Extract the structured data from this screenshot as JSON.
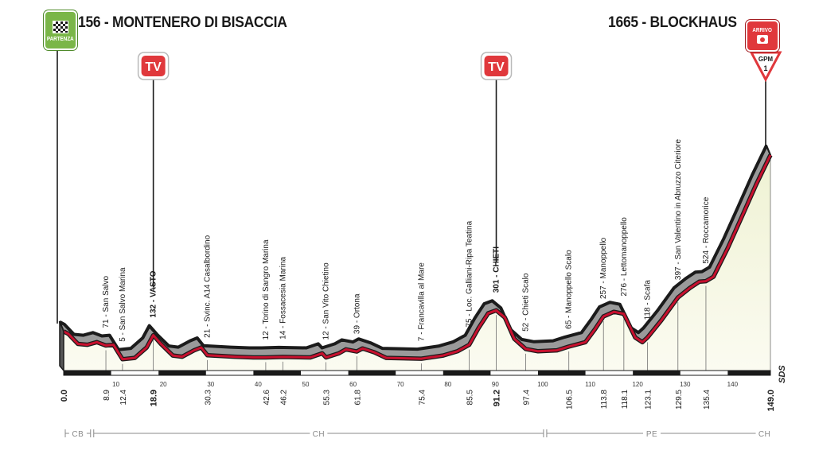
{
  "chart_data": {
    "type": "area",
    "start": {
      "name": "MONTENERO DI BISACCIA",
      "elevation": "156",
      "label": "156 - MONTENERO DI BISACCIA"
    },
    "finish": {
      "name": "BLOCKHAUS",
      "elevation": "1665",
      "label": "1665 - BLOCKHAUS"
    },
    "start_badge": "PARTENZA",
    "finish_badge": "ARRIVO",
    "tv_label": "TV",
    "tv_km": [
      18.9,
      91.2
    ],
    "gpm": {
      "label": "GPM",
      "category": "1",
      "km": 149.0
    },
    "xlim": [
      0,
      149
    ],
    "elevation_range": [
      0,
      1665
    ],
    "profile": [
      [
        0,
        156
      ],
      [
        1,
        140
      ],
      [
        3,
        80
      ],
      [
        5,
        75
      ],
      [
        7,
        90
      ],
      [
        8.9,
        71
      ],
      [
        10.5,
        75
      ],
      [
        12.4,
        5
      ],
      [
        15,
        10
      ],
      [
        17.5,
        60
      ],
      [
        18.9,
        132
      ],
      [
        20.5,
        80
      ],
      [
        23,
        20
      ],
      [
        25,
        15
      ],
      [
        27.5,
        45
      ],
      [
        29,
        60
      ],
      [
        30.3,
        21
      ],
      [
        36,
        15
      ],
      [
        40,
        12
      ],
      [
        42.6,
        12
      ],
      [
        46.2,
        14
      ],
      [
        52,
        12
      ],
      [
        54.5,
        30
      ],
      [
        55.3,
        12
      ],
      [
        58,
        30
      ],
      [
        59.5,
        50
      ],
      [
        61.8,
        39
      ],
      [
        63,
        55
      ],
      [
        65.5,
        35
      ],
      [
        68,
        10
      ],
      [
        75.4,
        7
      ],
      [
        80,
        20
      ],
      [
        83,
        40
      ],
      [
        85.5,
        75
      ],
      [
        87.5,
        180
      ],
      [
        89.5,
        280
      ],
      [
        91.2,
        301
      ],
      [
        93,
        250
      ],
      [
        95,
        110
      ],
      [
        97.4,
        52
      ],
      [
        100,
        40
      ],
      [
        104,
        45
      ],
      [
        106.5,
        65
      ],
      [
        110,
        90
      ],
      [
        112,
        170
      ],
      [
        113.8,
        257
      ],
      [
        116,
        290
      ],
      [
        118.1,
        276
      ],
      [
        120.5,
        118
      ],
      [
        122,
        90
      ],
      [
        123.1,
        118
      ],
      [
        126,
        230
      ],
      [
        129.5,
        397
      ],
      [
        132,
        470
      ],
      [
        134,
        520
      ],
      [
        135.4,
        524
      ],
      [
        137,
        560
      ],
      [
        140,
        800
      ],
      [
        143,
        1080
      ],
      [
        146,
        1380
      ],
      [
        149,
        1665
      ]
    ],
    "km_ticks": [
      "10",
      "20",
      "30",
      "40",
      "50",
      "60",
      "70",
      "80",
      "90",
      "100",
      "110",
      "120",
      "130",
      "140"
    ],
    "markers": [
      {
        "km": 0.0,
        "text": "",
        "km_label": "0.0",
        "bold": true
      },
      {
        "km": 8.9,
        "text": "71 - San Salvo",
        "km_label": "8.9",
        "bold": false
      },
      {
        "km": 12.4,
        "text": "5 - San Salvo Marina",
        "km_label": "12.4",
        "bold": false
      },
      {
        "km": 18.9,
        "text": "132 - VASTO",
        "km_label": "18.9",
        "bold": true
      },
      {
        "km": 30.3,
        "text": "21 - Svinc. A14 Casalbordino",
        "km_label": "30.3",
        "bold": false
      },
      {
        "km": 42.6,
        "text": "12 - Torino di Sangro Marina",
        "km_label": "42.6",
        "bold": false
      },
      {
        "km": 46.2,
        "text": "14 - Fossacesia Marina",
        "km_label": "46.2",
        "bold": false
      },
      {
        "km": 55.3,
        "text": "12 - San Vito Chietino",
        "km_label": "55.3",
        "bold": false
      },
      {
        "km": 61.8,
        "text": "39 - Ortona",
        "km_label": "61.8",
        "bold": false
      },
      {
        "km": 75.4,
        "text": "7 - Francavilla al Mare",
        "km_label": "75.4",
        "bold": false
      },
      {
        "km": 85.5,
        "text": "75 - Loc. Galliani-Ripa Teatina",
        "km_label": "85.5",
        "bold": false
      },
      {
        "km": 91.2,
        "text": "301 - CHIETI",
        "km_label": "91.2",
        "bold": true
      },
      {
        "km": 97.4,
        "text": "52 - Chieti Scalo",
        "km_label": "97.4",
        "bold": false
      },
      {
        "km": 106.5,
        "text": "65 - Manoppello Scalo",
        "km_label": "106.5",
        "bold": false
      },
      {
        "km": 113.8,
        "text": "257 - Manoppello",
        "km_label": "113.8",
        "bold": false
      },
      {
        "km": 118.1,
        "text": "276 - Lettomanoppello",
        "km_label": "118.1",
        "bold": false
      },
      {
        "km": 123.1,
        "text": "118 - Scafa",
        "km_label": "123.1",
        "bold": false
      },
      {
        "km": 129.5,
        "text": "397 - San Valentino in Abruzzo Citeriore",
        "km_label": "129.5",
        "bold": false
      },
      {
        "km": 135.4,
        "text": "524 - Roccamorice",
        "km_label": "135.4",
        "bold": false
      },
      {
        "km": 149.0,
        "text": "",
        "km_label": "149.0",
        "bold": true
      }
    ],
    "provinces": [
      {
        "code": "CB",
        "from": 0.0,
        "to": 6.0
      },
      {
        "code": "CH",
        "from": 6.0,
        "to": 101.5
      },
      {
        "code": "PE",
        "from": 101.5,
        "to": 146.5
      },
      {
        "code": "CH",
        "from": 146.5,
        "to": 149.0
      }
    ],
    "watermark": "SDS"
  },
  "colors": {
    "road_red": "#c8102e",
    "road_gray": "#9a9a9a",
    "shadow_dark": "#1b1b1b",
    "fill_top": "#eff2d3",
    "fill_bottom": "#fbfbf1",
    "tv_red": "#e0383c",
    "badge_green": "#7ab648"
  }
}
